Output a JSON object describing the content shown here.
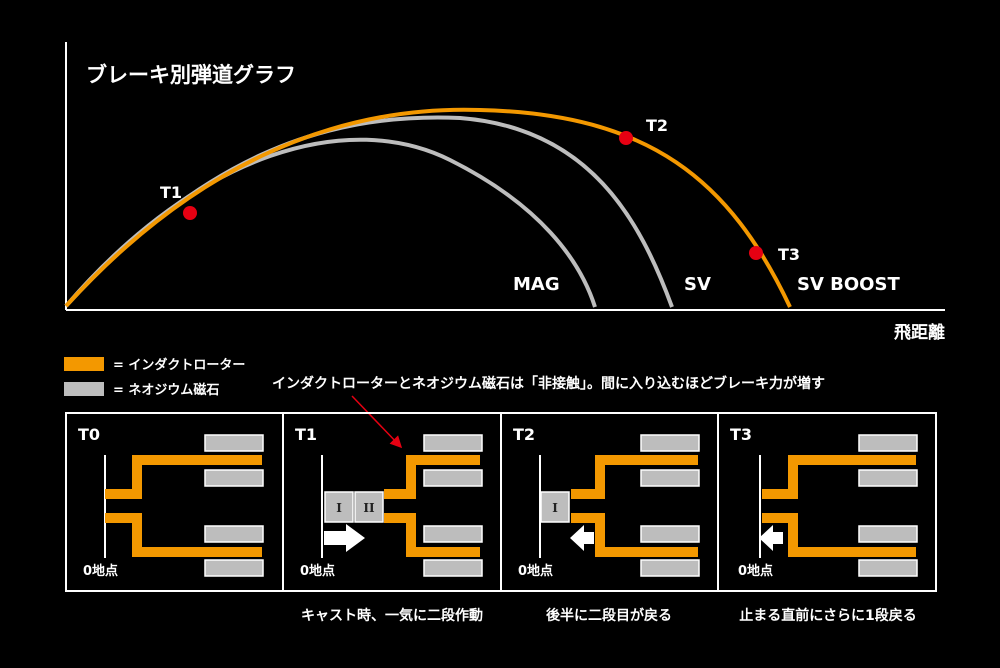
{
  "graph": {
    "title": "ブレーキ別弾道グラフ",
    "xlabel": "飛距離",
    "curves": {
      "mag": "MAG",
      "sv": "SV",
      "svboost": "SV BOOST"
    },
    "points": {
      "t1": "T1",
      "t2": "T2",
      "t3": "T3"
    }
  },
  "legend": {
    "orange": "= インダクトローター",
    "gray": "= ネオジウム磁石"
  },
  "annotation": "インダクトローターとネオジウム磁石は「非接触」。間に入り込むほどブレーキ力が増す",
  "panels": [
    {
      "label": "T0",
      "zero": "0地点",
      "caption": ""
    },
    {
      "label": "T1",
      "zero": "0地点",
      "caption": "キャスト時、一気に二段作動",
      "mag1": "I",
      "mag2": "II"
    },
    {
      "label": "T2",
      "zero": "0地点",
      "caption": "後半に二段目が戻る",
      "mag1": "I"
    },
    {
      "label": "T3",
      "zero": "0地点",
      "caption": "止まる直前にさらに1段戻る"
    }
  ],
  "colors": {
    "orange": "#f39800",
    "gray": "#bdbdbd",
    "red": "#e60012",
    "white": "#ffffff"
  }
}
